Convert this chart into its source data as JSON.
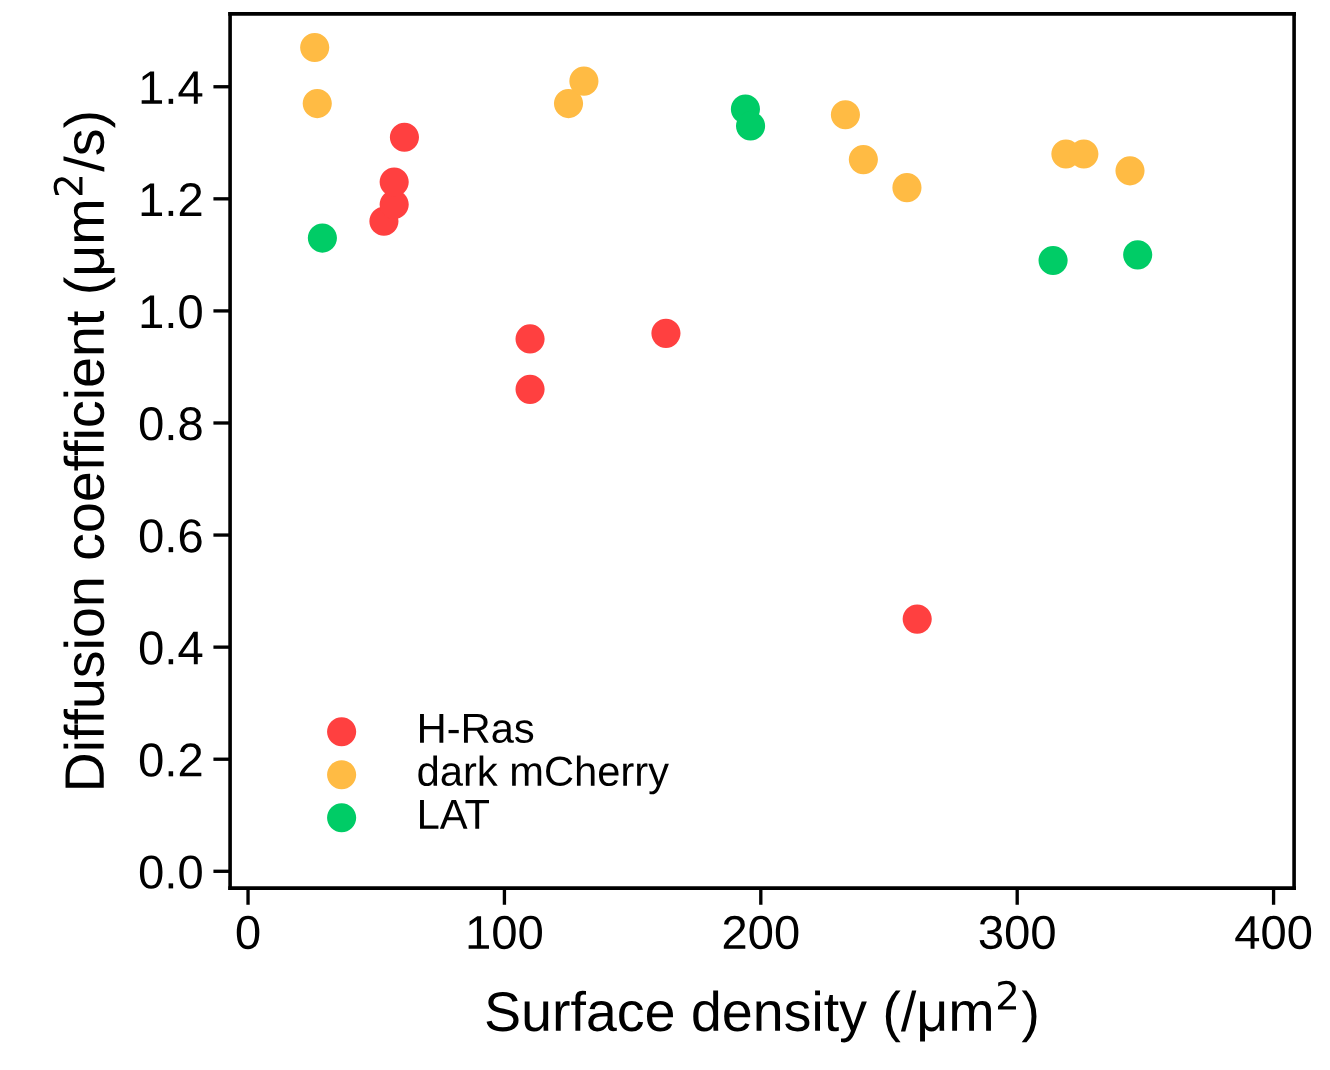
{
  "chart_data": {
    "type": "scatter",
    "xlabel": "Surface density (/μm$^{2}$)",
    "ylabel": "Diffusion coefficient (μm$^{2}$/s)",
    "xlim": [
      -7,
      408
    ],
    "ylim": [
      -0.03,
      1.53
    ],
    "xticks": [
      0,
      100,
      200,
      300,
      400
    ],
    "yticks": [
      {
        "value": 0,
        "label": "0.0"
      },
      0.2,
      0.4,
      0.6,
      0.8,
      {
        "value": 1,
        "label": "1.0"
      },
      1.2,
      1.4
    ],
    "marker": "circle",
    "legend": "bottom left",
    "grid": false,
    "series": [
      {
        "name": "H-Ras",
        "color": "#ff4040",
        "x": [
          53,
          57,
          57,
          61,
          110,
          110,
          163,
          261
        ],
        "values": [
          1.16,
          1.19,
          1.23,
          1.31,
          0.95,
          0.86,
          0.96,
          0.45
        ]
      },
      {
        "name": "dark mCherry",
        "color": "#ffbb44",
        "x": [
          26,
          27,
          125,
          131,
          233,
          240,
          257,
          319,
          326,
          344
        ],
        "values": [
          1.47,
          1.37,
          1.37,
          1.41,
          1.35,
          1.27,
          1.22,
          1.28,
          1.28,
          1.25
        ]
      },
      {
        "name": "LAT",
        "color": "#00cc66",
        "x": [
          29,
          194,
          196,
          314,
          347
        ],
        "values": [
          1.13,
          1.36,
          1.33,
          1.09,
          1.1
        ]
      }
    ]
  }
}
